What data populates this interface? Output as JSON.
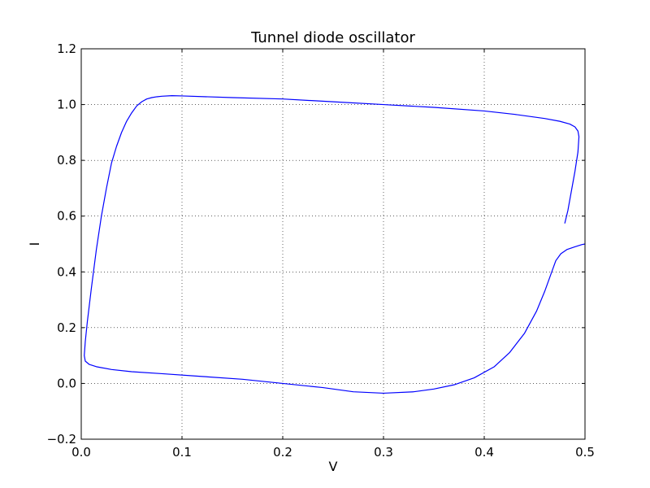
{
  "chart_data": {
    "type": "line",
    "title": "Tunnel diode oscillator",
    "xlabel": "V",
    "ylabel": "I",
    "xlim": [
      0.0,
      0.5
    ],
    "ylim": [
      -0.2,
      1.2
    ],
    "xticks": [
      0.0,
      0.1,
      0.2,
      0.3,
      0.4,
      0.5
    ],
    "yticks": [
      -0.2,
      0.0,
      0.2,
      0.4,
      0.6,
      0.8,
      1.0,
      1.2
    ],
    "xtick_labels": [
      "0.0",
      "0.1",
      "0.2",
      "0.3",
      "0.4",
      "0.5"
    ],
    "ytick_labels": [
      "−0.2",
      "0.0",
      "0.2",
      "0.4",
      "0.6",
      "0.8",
      "1.0",
      "1.2"
    ],
    "grid": true,
    "series": [
      {
        "color": "#0000ff",
        "x": [
          0.5,
          0.497,
          0.49,
          0.482,
          0.476,
          0.471,
          0.466,
          0.46,
          0.452,
          0.44,
          0.425,
          0.41,
          0.39,
          0.37,
          0.35,
          0.33,
          0.3,
          0.27,
          0.24,
          0.2,
          0.16,
          0.12,
          0.08,
          0.05,
          0.03,
          0.015,
          0.008,
          0.004,
          0.003,
          0.004,
          0.006,
          0.01,
          0.015,
          0.02,
          0.025,
          0.03,
          0.035,
          0.04,
          0.045,
          0.05,
          0.055,
          0.06,
          0.065,
          0.07,
          0.075,
          0.08,
          0.09,
          0.1,
          0.15,
          0.2,
          0.25,
          0.3,
          0.35,
          0.4,
          0.43,
          0.46,
          0.475,
          0.485,
          0.49,
          0.493,
          0.494,
          0.493,
          0.49,
          0.486,
          0.483,
          0.48
        ],
        "y": [
          0.5,
          0.498,
          0.49,
          0.48,
          0.465,
          0.44,
          0.39,
          0.33,
          0.26,
          0.18,
          0.11,
          0.06,
          0.02,
          -0.005,
          -0.02,
          -0.03,
          -0.035,
          -0.03,
          -0.015,
          0.0,
          0.015,
          0.025,
          0.035,
          0.042,
          0.05,
          0.06,
          0.068,
          0.08,
          0.1,
          0.15,
          0.22,
          0.34,
          0.48,
          0.6,
          0.7,
          0.79,
          0.85,
          0.9,
          0.94,
          0.97,
          0.995,
          1.01,
          1.02,
          1.025,
          1.028,
          1.03,
          1.032,
          1.031,
          1.025,
          1.02,
          1.01,
          1.0,
          0.99,
          0.977,
          0.965,
          0.95,
          0.94,
          0.93,
          0.92,
          0.905,
          0.885,
          0.83,
          0.76,
          0.68,
          0.62,
          0.575
        ]
      }
    ]
  }
}
